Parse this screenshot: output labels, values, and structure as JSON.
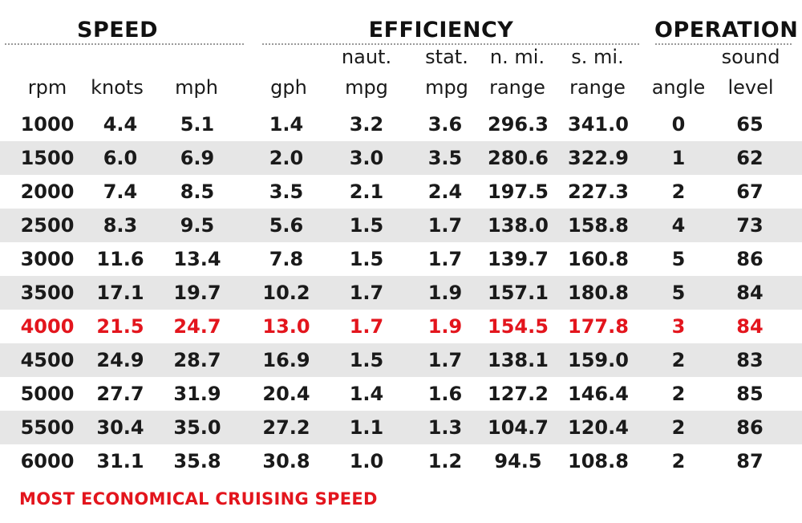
{
  "groups": {
    "speed": "SPEED",
    "efficiency": "EFFICIENCY",
    "operation": "OPERATION"
  },
  "headers_top": {
    "naut_mpg": "naut.",
    "stat_mpg": "stat.",
    "n_mi_range": "n. mi.",
    "s_mi_range": "s. mi.",
    "sound_level": "sound"
  },
  "headers": {
    "rpm": "rpm",
    "knots": "knots",
    "mph": "mph",
    "gph": "gph",
    "naut_mpg": "mpg",
    "stat_mpg": "mpg",
    "n_mi_range": "range",
    "s_mi_range": "range",
    "angle": "angle",
    "sound_level": "level"
  },
  "rows": [
    [
      "1000",
      "4.4",
      "5.1",
      "1.4",
      "3.2",
      "3.6",
      "296.3",
      "341.0",
      "0",
      "65"
    ],
    [
      "1500",
      "6.0",
      "6.9",
      "2.0",
      "3.0",
      "3.5",
      "280.6",
      "322.9",
      "1",
      "62"
    ],
    [
      "2000",
      "7.4",
      "8.5",
      "3.5",
      "2.1",
      "2.4",
      "197.5",
      "227.3",
      "2",
      "67"
    ],
    [
      "2500",
      "8.3",
      "9.5",
      "5.6",
      "1.5",
      "1.7",
      "138.0",
      "158.8",
      "4",
      "73"
    ],
    [
      "3000",
      "11.6",
      "13.4",
      "7.8",
      "1.5",
      "1.7",
      "139.7",
      "160.8",
      "5",
      "86"
    ],
    [
      "3500",
      "17.1",
      "19.7",
      "10.2",
      "1.7",
      "1.9",
      "157.1",
      "180.8",
      "5",
      "84"
    ],
    [
      "4000",
      "21.5",
      "24.7",
      "13.0",
      "1.7",
      "1.9",
      "154.5",
      "177.8",
      "3",
      "84"
    ],
    [
      "4500",
      "24.9",
      "28.7",
      "16.9",
      "1.5",
      "1.7",
      "138.1",
      "159.0",
      "2",
      "83"
    ],
    [
      "5000",
      "27.7",
      "31.9",
      "20.4",
      "1.4",
      "1.6",
      "127.2",
      "146.4",
      "2",
      "85"
    ],
    [
      "5500",
      "30.4",
      "35.0",
      "27.2",
      "1.1",
      "1.3",
      "104.7",
      "120.4",
      "2",
      "86"
    ],
    [
      "6000",
      "31.1",
      "35.8",
      "30.8",
      "1.0",
      "1.2",
      "94.5",
      "108.8",
      "2",
      "87"
    ]
  ],
  "highlight_row_rpm": "4000",
  "footnote": "MOST ECONOMICAL CRUISING SPEED",
  "colors": {
    "highlight": "#e3151d",
    "shaded_row": "#e6e6e6",
    "text": "#1a1a1a"
  }
}
